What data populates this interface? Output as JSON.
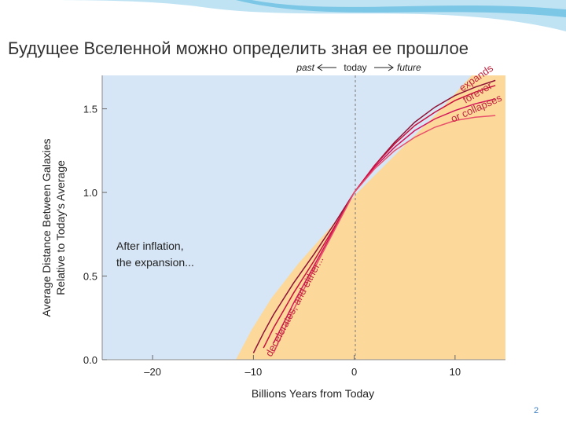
{
  "slide": {
    "title": "Будущее Вселенной можно определить зная ее прошлое",
    "page_number": "2"
  },
  "chart_data": {
    "type": "line",
    "x_label": "Billions Years from Today",
    "y_label": [
      "Average Distance Between Galaxies",
      "Relative to Today's Average"
    ],
    "annotations": {
      "past": "past",
      "today": "today",
      "future": "future",
      "inflation": [
        "After inflation,",
        "the expansion..."
      ],
      "decelerates": "decelerates, and either...",
      "outcome": [
        "expands",
        "forever",
        "or collapses"
      ]
    },
    "x": [
      -11,
      -10,
      -9,
      -8,
      -6,
      -4,
      -2,
      0,
      2,
      4,
      6,
      8,
      10,
      12,
      14
    ],
    "series": [
      {
        "color": "#8e1236",
        "values": [
          null,
          0.04,
          0.16,
          0.27,
          0.46,
          0.63,
          0.81,
          1.0,
          1.16,
          1.3,
          1.42,
          1.51,
          1.58,
          1.63,
          1.67
        ]
      },
      {
        "color": "#c8103e",
        "values": [
          null,
          null,
          0.07,
          0.19,
          0.4,
          0.59,
          0.79,
          1.0,
          1.16,
          1.29,
          1.4,
          1.48,
          1.55,
          1.6,
          1.64
        ]
      },
      {
        "color": "#d4145a",
        "values": [
          null,
          null,
          null,
          0.1,
          0.34,
          0.56,
          0.78,
          1.0,
          1.15,
          1.27,
          1.37,
          1.44,
          1.49,
          1.53,
          1.56
        ]
      },
      {
        "color": "#e8506a",
        "values": [
          null,
          null,
          null,
          0.04,
          0.3,
          0.54,
          0.77,
          1.0,
          1.14,
          1.25,
          1.33,
          1.39,
          1.43,
          1.45,
          1.46
        ]
      }
    ],
    "xlim": [
      -25,
      15
    ],
    "ylim": [
      0,
      1.7
    ],
    "xticks": [
      {
        "value": -20,
        "label": "–20"
      },
      {
        "value": -10,
        "label": "–10"
      },
      0,
      10
    ],
    "yticks": [
      {
        "value": 0,
        "label": "0.0"
      },
      {
        "value": 0.5,
        "label": "0.5"
      },
      {
        "value": 1,
        "label": "1.0"
      },
      {
        "value": 1.5,
        "label": "1.5"
      }
    ]
  }
}
